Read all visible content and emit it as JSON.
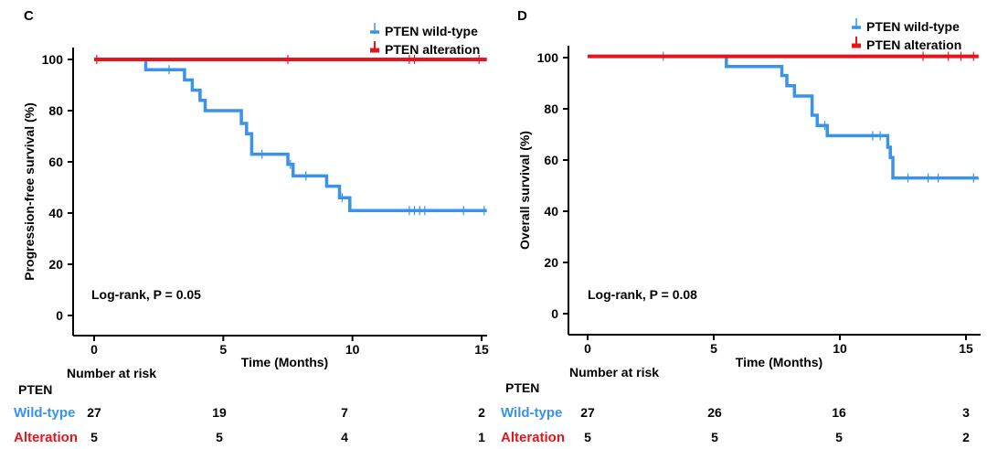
{
  "chart_data": [
    {
      "panel_label": "C",
      "type": "line",
      "title": "",
      "xlabel": "Time (Months)",
      "ylabel": "Progression-free survival (%)",
      "xlim": [
        0,
        15.2
      ],
      "ylim": [
        0,
        100
      ],
      "xticks": [
        0,
        5,
        10,
        15
      ],
      "yticks": [
        0,
        20,
        40,
        60,
        80,
        100
      ],
      "legend_position": "top-right",
      "annotation": "Log-rank, P = 0.05",
      "series": [
        {
          "name": "PTEN wild-type",
          "color": "#3a93e8",
          "step_x": [
            0,
            2.0,
            2.0,
            3.5,
            3.5,
            3.8,
            3.8,
            4.1,
            4.1,
            4.3,
            4.3,
            5.7,
            5.7,
            5.9,
            5.9,
            6.1,
            6.1,
            7.5,
            7.5,
            7.7,
            7.7,
            9.0,
            9.0,
            9.5,
            9.5,
            9.9,
            9.9,
            15.2
          ],
          "step_y": [
            100,
            100,
            96,
            96,
            92,
            92,
            88,
            88,
            84,
            84,
            80,
            80,
            75,
            75,
            71,
            71,
            63,
            63,
            59,
            59,
            54.5,
            54.5,
            50.5,
            50.5,
            46,
            46,
            41,
            41
          ],
          "censor_x": [
            2.9,
            6.5,
            7.6,
            8.2,
            9.6,
            12.2,
            12.4,
            12.6,
            12.8,
            14.3,
            15.1
          ]
        },
        {
          "name": "PTEN alteration",
          "color": "#e8141c",
          "step_x": [
            0,
            15.2
          ],
          "step_y": [
            100,
            100
          ],
          "censor_x": [
            0.1,
            7.5,
            12.2,
            12.4,
            14.9
          ]
        }
      ],
      "risk_table": {
        "title": "Number at risk",
        "group_header": "PTEN",
        "times": [
          0,
          5,
          10,
          15
        ],
        "rows": [
          {
            "label": "Wild-type",
            "color": "#3a93e8",
            "counts": [
              "27",
              "19",
              "7",
              "2"
            ]
          },
          {
            "label": "Alteration",
            "color": "#e8141c",
            "counts": [
              "5",
              "5",
              "4",
              "1"
            ]
          }
        ]
      }
    },
    {
      "panel_label": "D",
      "type": "line",
      "title": "",
      "xlabel": "Time (Months)",
      "ylabel": "Overall survival (%)",
      "xlim": [
        0,
        15.5
      ],
      "ylim": [
        0,
        100
      ],
      "xticks": [
        0,
        5,
        10,
        15
      ],
      "yticks": [
        0,
        20,
        40,
        60,
        80,
        100
      ],
      "legend_position": "top-right",
      "annotation": "Log-rank, P = 0.08",
      "series": [
        {
          "name": "PTEN wild-type",
          "color": "#3a93e8",
          "step_x": [
            0,
            5.5,
            5.5,
            7.7,
            7.7,
            7.9,
            7.9,
            8.2,
            8.2,
            8.9,
            8.9,
            9.1,
            9.1,
            9.5,
            9.5,
            11.9,
            11.9,
            12.0,
            12.0,
            12.1,
            12.1,
            15.5
          ],
          "step_y": [
            100.5,
            100.5,
            96.5,
            96.5,
            93,
            93,
            89,
            89,
            85,
            85,
            77.5,
            77.5,
            73.5,
            73.5,
            69.5,
            69.5,
            65,
            65,
            61,
            61,
            53,
            53
          ],
          "censor_x": [
            3.0,
            9.4,
            11.3,
            11.6,
            12.7,
            13.5,
            13.9,
            15.3
          ]
        },
        {
          "name": "PTEN alteration",
          "color": "#e8141c",
          "step_x": [
            0,
            15.5
          ],
          "step_y": [
            100.5,
            100.5
          ],
          "censor_x": [
            13.3,
            14.3,
            14.8,
            15.3
          ]
        }
      ],
      "risk_table": {
        "title": "Number at risk",
        "group_header": "PTEN",
        "times": [
          0,
          5,
          10,
          15
        ],
        "rows": [
          {
            "label": "Wild-type",
            "color": "#3a93e8",
            "counts": [
              "27",
              "26",
              "16",
              "3"
            ]
          },
          {
            "label": "Alteration",
            "color": "#e8141c",
            "counts": [
              "5",
              "5",
              "5",
              "2"
            ]
          }
        ]
      }
    }
  ]
}
